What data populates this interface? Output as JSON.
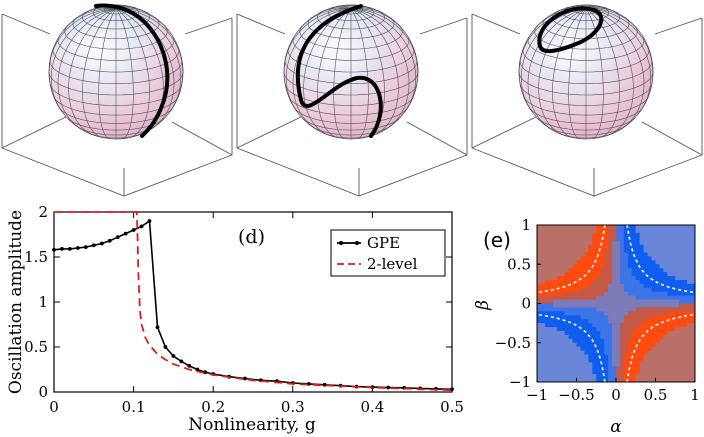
{
  "colors": {
    "gpe": "#000000",
    "two_level": "#dd1c1c",
    "heat_blue_dark": "#0f5ef0",
    "heat_blue_mid": "#3d74e8",
    "heat_blue_light": "#6a86d8",
    "heat_center": "#7d7bb8",
    "heat_red_light": "#b87068",
    "heat_red_mid": "#c45a45",
    "heat_red_dark": "#ff4a10"
  },
  "spheres": [
    {
      "name": "sphere-1",
      "trajectory": "meridian"
    },
    {
      "name": "sphere-2",
      "trajectory": "s-curve"
    },
    {
      "name": "sphere-3",
      "trajectory": "small-loop"
    }
  ],
  "chart_data": [
    {
      "type": "line",
      "panel_label": "(d)",
      "xlabel": "Nonlinearity, g",
      "ylabel": "Oscillation amplitude",
      "xlim": [
        0,
        0.5
      ],
      "ylim": [
        0,
        2
      ],
      "x_ticks": [
        "0",
        "0.1",
        "0.2",
        "0.3",
        "0.4",
        "0.5"
      ],
      "y_ticks": [
        "0",
        "0.5",
        "1",
        "1.5",
        "2"
      ],
      "legend_position": "top-right",
      "series": [
        {
          "name": "GPE",
          "style": "solid-markers",
          "x": [
            0,
            0.01,
            0.02,
            0.03,
            0.04,
            0.05,
            0.06,
            0.07,
            0.08,
            0.09,
            0.1,
            0.11,
            0.12,
            0.13,
            0.14,
            0.15,
            0.16,
            0.17,
            0.18,
            0.19,
            0.2,
            0.22,
            0.24,
            0.26,
            0.28,
            0.3,
            0.32,
            0.34,
            0.36,
            0.38,
            0.4,
            0.42,
            0.44,
            0.46,
            0.48,
            0.5
          ],
          "y": [
            1.58,
            1.59,
            1.59,
            1.6,
            1.61,
            1.63,
            1.65,
            1.68,
            1.72,
            1.76,
            1.8,
            1.84,
            1.9,
            0.72,
            0.5,
            0.4,
            0.34,
            0.29,
            0.25,
            0.22,
            0.2,
            0.17,
            0.15,
            0.13,
            0.12,
            0.1,
            0.09,
            0.08,
            0.07,
            0.06,
            0.055,
            0.05,
            0.045,
            0.04,
            0.035,
            0.03
          ]
        },
        {
          "name": "2-level",
          "style": "dashed",
          "x": [
            0,
            0.104,
            0.105,
            0.106,
            0.108,
            0.11,
            0.115,
            0.12,
            0.13,
            0.14,
            0.15,
            0.17,
            0.2,
            0.25,
            0.3,
            0.35,
            0.4,
            0.45,
            0.5
          ],
          "y": [
            2.0,
            2.0,
            1.7,
            1.3,
            0.9,
            0.75,
            0.6,
            0.52,
            0.42,
            0.36,
            0.31,
            0.25,
            0.19,
            0.13,
            0.09,
            0.07,
            0.05,
            0.035,
            0.02
          ]
        }
      ]
    },
    {
      "type": "heatmap",
      "panel_label": "(e)",
      "xlabel": "α",
      "ylabel": "β",
      "xlim": [
        -1,
        1
      ],
      "ylim": [
        -1,
        1
      ],
      "x_ticks": [
        "−1",
        "−0.5",
        "0",
        "0.5",
        "1"
      ],
      "y_ticks": [
        "−1",
        "−0.5",
        "0",
        "0.5",
        "1"
      ],
      "contour": "dashed white hyperbolas"
    }
  ]
}
